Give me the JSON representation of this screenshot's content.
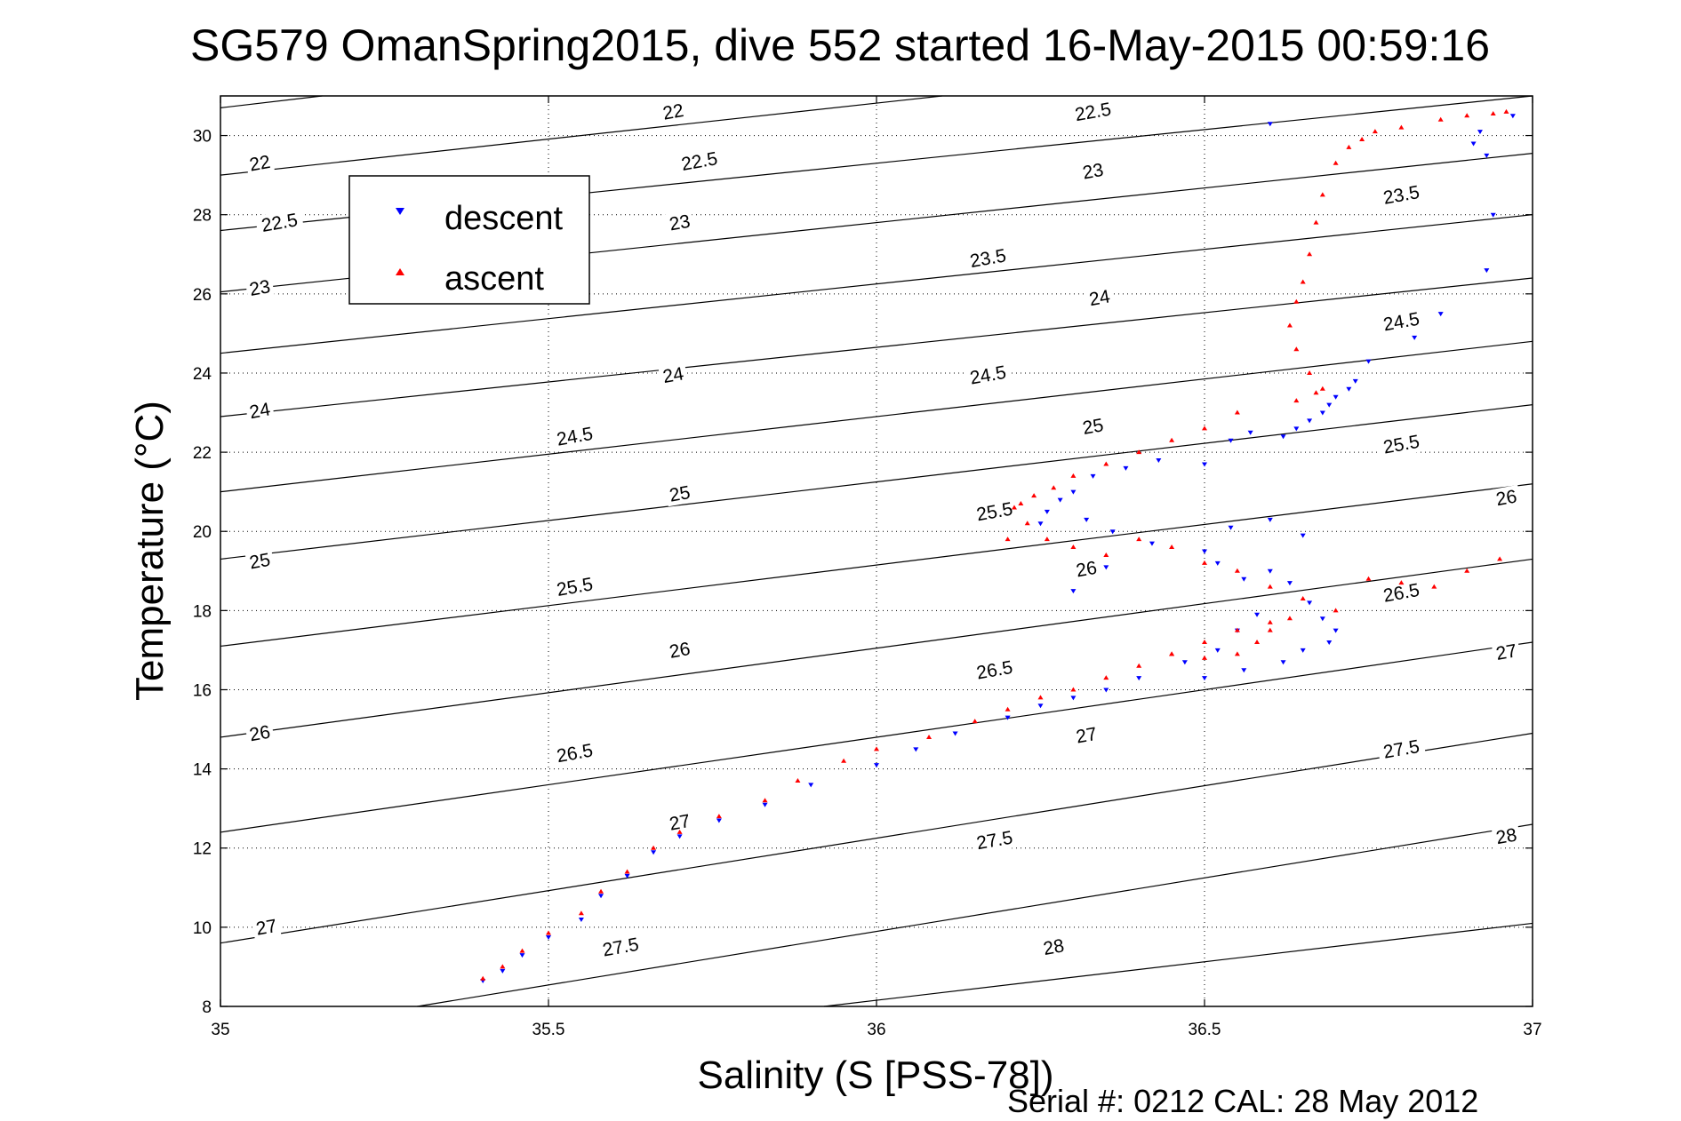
{
  "chart_data": {
    "type": "scatter",
    "title": "SG579 OmanSpring2015, dive 552 started 16-May-2015 00:59:16",
    "xlabel": "Salinity (S [PSS-78])",
    "ylabel": "Temperature (°C)",
    "footer": "Serial #: 0212  CAL: 28 May 2012",
    "xlim": [
      35,
      37
    ],
    "ylim": [
      8,
      31
    ],
    "xticks": [
      35,
      35.5,
      36,
      36.5,
      37
    ],
    "xtick_labels": [
      "35",
      "35.5",
      "36",
      "36.5",
      "37"
    ],
    "yticks": [
      8,
      10,
      12,
      14,
      16,
      18,
      20,
      22,
      24,
      26,
      28,
      30
    ],
    "ytick_labels": [
      "8",
      "10",
      "12",
      "14",
      "16",
      "18",
      "20",
      "22",
      "24",
      "26",
      "28",
      "30"
    ],
    "grid": true,
    "legend_position": "top-left",
    "colors": {
      "descent": "#0000ff",
      "ascent": "#ff0000",
      "contour": "#000000"
    },
    "density_contours": [
      {
        "label": "22",
        "start": [
          35,
          30.7
        ],
        "end": [
          35.155,
          31.0
        ]
      },
      {
        "label": "22",
        "start": [
          35,
          29.0
        ],
        "end": [
          36.1,
          31.0
        ]
      },
      {
        "label": "22.5",
        "start": [
          35,
          27.6
        ],
        "end": [
          37,
          31.0
        ]
      },
      {
        "label": "23",
        "start": [
          35,
          26.05
        ],
        "end": [
          37,
          29.55
        ]
      },
      {
        "label": "23.5",
        "start": [
          35,
          24.5
        ],
        "end": [
          37,
          28.0
        ]
      },
      {
        "label": "24",
        "start": [
          35,
          22.9
        ],
        "end": [
          37,
          26.4
        ]
      },
      {
        "label": "24.5",
        "start": [
          35,
          21.0
        ],
        "end": [
          37,
          24.8
        ]
      },
      {
        "label": "25",
        "start": [
          35,
          19.3
        ],
        "end": [
          37,
          23.2
        ]
      },
      {
        "label": "25.5",
        "start": [
          35,
          17.1
        ],
        "end": [
          37,
          21.2
        ]
      },
      {
        "label": "26",
        "start": [
          35,
          14.8
        ],
        "end": [
          37,
          19.3
        ]
      },
      {
        "label": "26.5",
        "start": [
          35,
          12.4
        ],
        "end": [
          37,
          17.2
        ]
      },
      {
        "label": "27",
        "start": [
          35,
          9.6
        ],
        "end": [
          37,
          14.9
        ]
      },
      {
        "label": "27.5",
        "start": [
          35.3,
          8.0
        ],
        "end": [
          37,
          12.6
        ]
      },
      {
        "label": "28",
        "start": [
          35.92,
          8.0
        ],
        "end": [
          37,
          10.1
        ]
      }
    ],
    "contour_labels": [
      {
        "text": "22",
        "x": 35.69,
        "y": 30.6
      },
      {
        "text": "22.5",
        "x": 36.33,
        "y": 30.6
      },
      {
        "text": "22",
        "x": 35.06,
        "y": 29.3
      },
      {
        "text": "22.5",
        "x": 35.73,
        "y": 29.35
      },
      {
        "text": "23",
        "x": 36.33,
        "y": 29.1
      },
      {
        "text": "22.5",
        "x": 35.09,
        "y": 27.8
      },
      {
        "text": "23",
        "x": 35.7,
        "y": 27.8
      },
      {
        "text": "23.5",
        "x": 36.8,
        "y": 28.5
      },
      {
        "text": "23",
        "x": 35.06,
        "y": 26.15
      },
      {
        "text": "23.5",
        "x": 36.17,
        "y": 26.9
      },
      {
        "text": "24",
        "x": 36.34,
        "y": 25.9
      },
      {
        "text": "24.5",
        "x": 36.8,
        "y": 25.3
      },
      {
        "text": "24",
        "x": 35.69,
        "y": 23.95
      },
      {
        "text": "24.5",
        "x": 36.17,
        "y": 23.95
      },
      {
        "text": "24",
        "x": 35.06,
        "y": 23.05
      },
      {
        "text": "25",
        "x": 36.33,
        "y": 22.65
      },
      {
        "text": "24.5",
        "x": 35.54,
        "y": 22.4
      },
      {
        "text": "25.5",
        "x": 36.8,
        "y": 22.2
      },
      {
        "text": "25",
        "x": 35.7,
        "y": 20.95
      },
      {
        "text": "25.5",
        "x": 36.18,
        "y": 20.5
      },
      {
        "text": "26",
        "x": 36.96,
        "y": 20.85
      },
      {
        "text": "25",
        "x": 35.06,
        "y": 19.25
      },
      {
        "text": "26",
        "x": 36.32,
        "y": 19.05
      },
      {
        "text": "25.5",
        "x": 35.54,
        "y": 18.6
      },
      {
        "text": "26.5",
        "x": 36.8,
        "y": 18.45
      },
      {
        "text": "26",
        "x": 35.7,
        "y": 17.0
      },
      {
        "text": "27",
        "x": 36.96,
        "y": 16.95
      },
      {
        "text": "26.5",
        "x": 36.18,
        "y": 16.5
      },
      {
        "text": "26",
        "x": 35.06,
        "y": 14.9
      },
      {
        "text": "27",
        "x": 36.32,
        "y": 14.85
      },
      {
        "text": "26.5",
        "x": 35.54,
        "y": 14.4
      },
      {
        "text": "27.5",
        "x": 36.8,
        "y": 14.5
      },
      {
        "text": "27",
        "x": 35.7,
        "y": 12.65
      },
      {
        "text": "27.5",
        "x": 36.18,
        "y": 12.2
      },
      {
        "text": "28",
        "x": 36.96,
        "y": 12.3
      },
      {
        "text": "27",
        "x": 35.07,
        "y": 10.0
      },
      {
        "text": "27.5",
        "x": 35.61,
        "y": 9.5
      },
      {
        "text": "28",
        "x": 36.27,
        "y": 9.5
      }
    ],
    "series": [
      {
        "name": "descent",
        "marker": "triangle-down",
        "x": [
          35.4,
          35.43,
          35.46,
          35.5,
          35.55,
          35.58,
          35.62,
          35.66,
          35.7,
          35.76,
          35.83,
          35.9,
          36.0,
          36.06,
          36.12,
          36.2,
          36.25,
          36.3,
          36.35,
          36.4,
          36.47,
          36.52,
          36.55,
          36.58,
          36.62,
          36.64,
          36.66,
          36.68,
          36.69,
          36.7,
          36.72,
          36.73,
          36.75,
          36.82,
          36.86,
          36.93,
          36.94,
          36.93,
          36.91,
          36.92,
          36.97,
          36.6,
          36.57,
          36.54,
          36.5,
          36.43,
          36.38,
          36.33,
          36.3,
          36.28,
          36.26,
          36.25,
          36.32,
          36.36,
          36.42,
          36.5,
          36.52,
          36.56,
          36.6,
          36.63,
          36.66,
          36.68,
          36.7,
          36.69,
          36.65,
          36.62,
          36.56,
          36.5,
          36.3,
          36.35,
          36.54,
          36.6,
          36.65
        ],
        "y": [
          8.65,
          8.9,
          9.3,
          9.75,
          10.2,
          10.8,
          11.3,
          11.9,
          12.3,
          12.7,
          13.1,
          13.6,
          14.1,
          14.5,
          14.9,
          15.3,
          15.6,
          15.8,
          16.0,
          16.3,
          16.7,
          17.0,
          17.5,
          17.9,
          22.4,
          22.6,
          22.8,
          23.0,
          23.2,
          23.4,
          23.6,
          23.8,
          24.3,
          24.9,
          25.5,
          26.6,
          28.0,
          29.5,
          29.8,
          30.1,
          30.5,
          30.3,
          22.5,
          22.3,
          21.7,
          21.8,
          21.6,
          21.4,
          21.0,
          20.8,
          20.5,
          20.2,
          20.3,
          20.0,
          19.7,
          19.5,
          19.2,
          18.8,
          19.0,
          18.7,
          18.2,
          17.8,
          17.5,
          17.2,
          17.0,
          16.7,
          16.5,
          16.3,
          18.5,
          19.1,
          20.1,
          20.3,
          19.9
        ]
      },
      {
        "name": "ascent",
        "marker": "triangle-up",
        "x": [
          35.4,
          35.43,
          35.46,
          35.5,
          35.55,
          35.58,
          35.62,
          35.66,
          35.7,
          35.76,
          35.83,
          35.88,
          35.95,
          36.0,
          36.08,
          36.15,
          36.2,
          36.25,
          36.3,
          36.35,
          36.4,
          36.45,
          36.5,
          36.55,
          36.6,
          36.64,
          36.67,
          36.68,
          36.66,
          36.64,
          36.63,
          36.64,
          36.65,
          36.66,
          36.67,
          36.68,
          36.7,
          36.72,
          36.74,
          36.76,
          36.8,
          36.86,
          36.9,
          36.94,
          36.96,
          36.55,
          36.5,
          36.45,
          36.4,
          36.35,
          36.3,
          36.27,
          36.24,
          36.22,
          36.21,
          36.23,
          36.26,
          36.3,
          36.35,
          36.4,
          36.45,
          36.5,
          36.55,
          36.6,
          36.65,
          36.7,
          36.75,
          36.8,
          36.85,
          36.9,
          36.95,
          36.63,
          36.6,
          36.58,
          36.55,
          36.5,
          36.45,
          36.2
        ],
        "y": [
          8.7,
          9.0,
          9.4,
          9.85,
          10.35,
          10.9,
          11.4,
          12.0,
          12.4,
          12.8,
          13.2,
          13.7,
          14.2,
          14.5,
          14.8,
          15.2,
          15.5,
          15.8,
          16.0,
          16.3,
          16.6,
          16.9,
          17.2,
          17.5,
          17.7,
          23.3,
          23.5,
          23.6,
          24.0,
          24.6,
          25.2,
          25.8,
          26.3,
          27.0,
          27.8,
          28.5,
          29.3,
          29.7,
          29.9,
          30.1,
          30.2,
          30.4,
          30.5,
          30.55,
          30.6,
          23.0,
          22.6,
          22.3,
          22.0,
          21.7,
          21.4,
          21.1,
          20.9,
          20.7,
          20.6,
          20.2,
          19.8,
          19.6,
          19.4,
          19.8,
          19.6,
          19.2,
          19.0,
          18.6,
          18.3,
          18.0,
          18.8,
          18.7,
          18.6,
          19.0,
          19.3,
          17.8,
          17.5,
          17.2,
          16.9,
          16.8,
          16.9,
          19.8
        ]
      }
    ]
  }
}
